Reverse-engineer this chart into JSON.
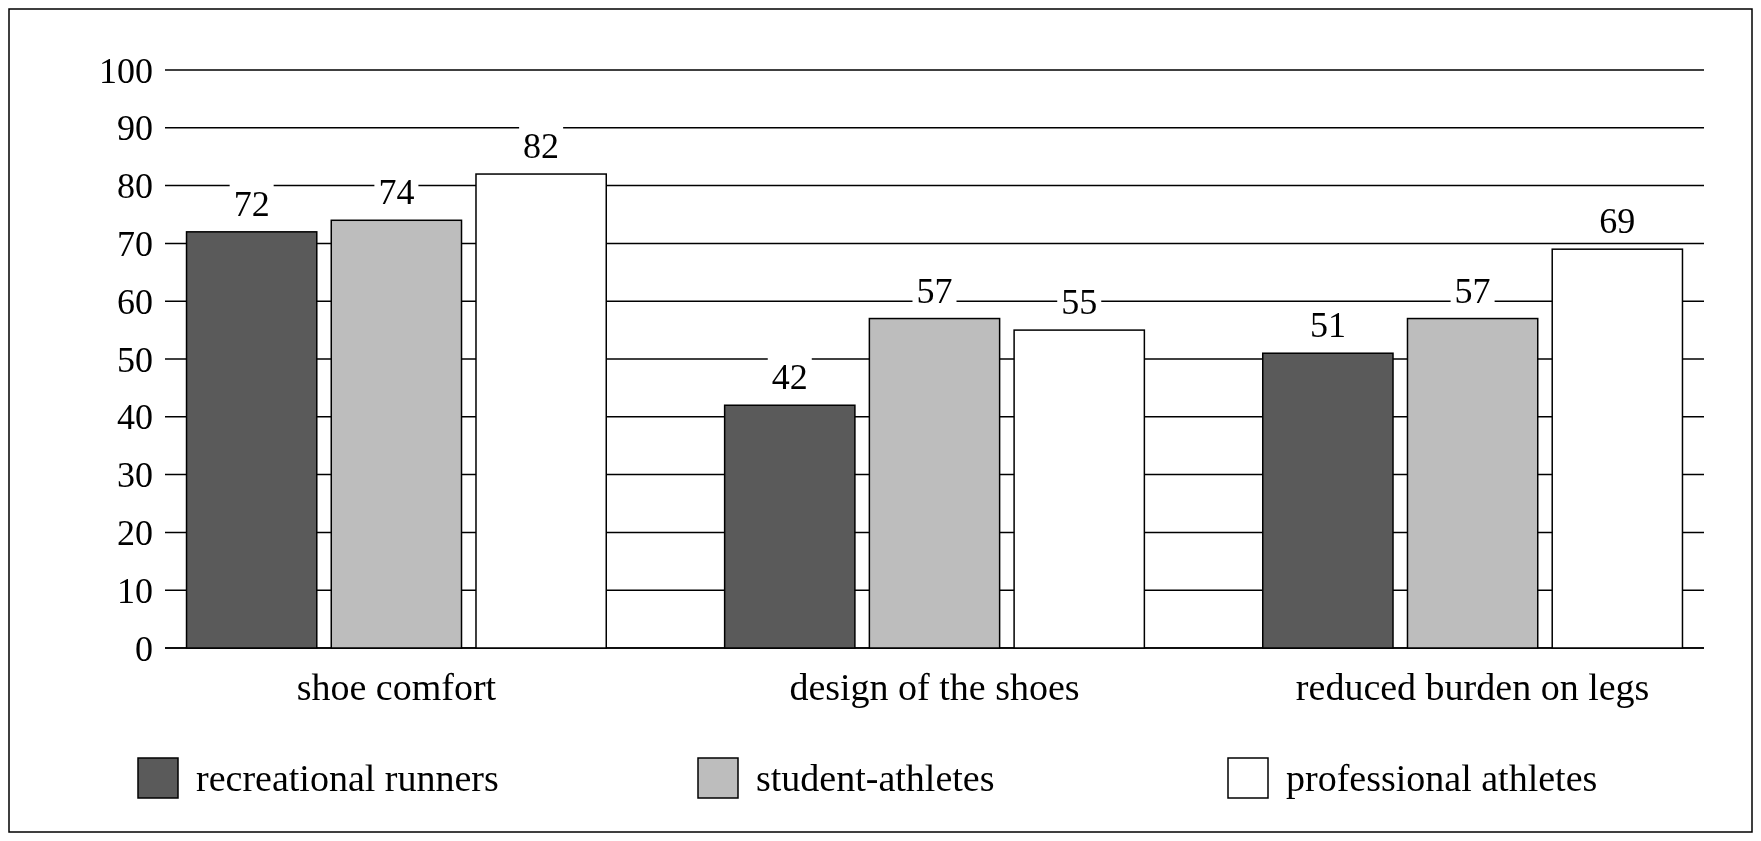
{
  "chart_data": {
    "type": "bar",
    "categories": [
      "shoe comfort",
      "design of the shoes",
      "reduced burden on legs"
    ],
    "series": [
      {
        "name": "recreational runners",
        "color": "#5a5a5a",
        "values": [
          72,
          42,
          51
        ]
      },
      {
        "name": "student-athletes",
        "color": "#bdbdbd",
        "values": [
          74,
          57,
          57
        ]
      },
      {
        "name": "professional athletes",
        "color": "#ffffff",
        "values": [
          82,
          55,
          69
        ]
      }
    ],
    "ylim": [
      0,
      100
    ],
    "yticks": [
      0,
      10,
      20,
      30,
      40,
      50,
      60,
      70,
      80,
      90,
      100
    ],
    "grid": "y",
    "legend": "bottom",
    "data_labels": true
  }
}
